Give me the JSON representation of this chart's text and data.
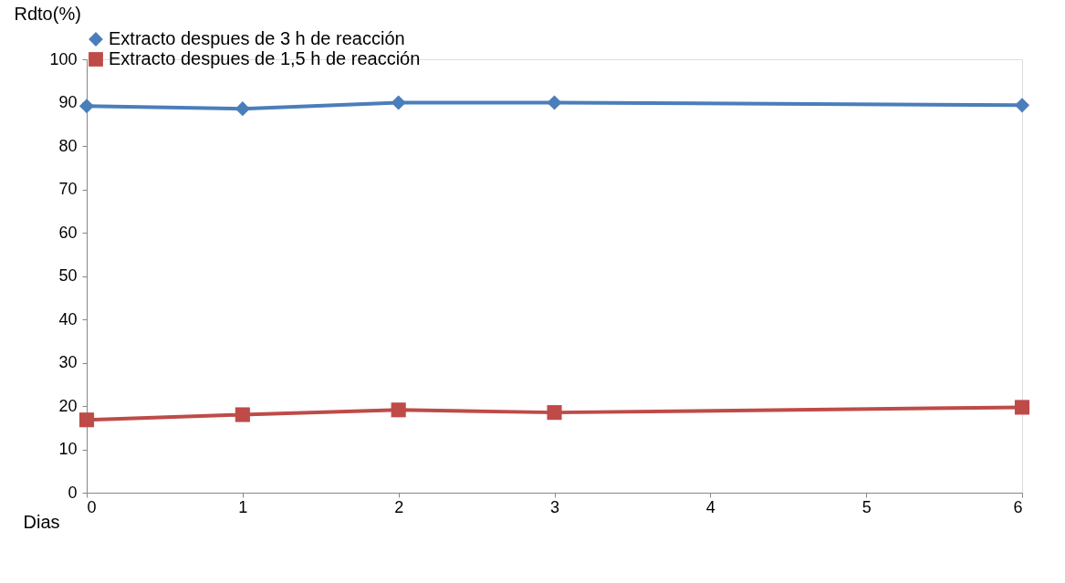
{
  "chart_data": {
    "type": "line",
    "xlabel": "Dias",
    "ylabel": "Rdto(%)",
    "x": [
      0,
      1,
      2,
      3,
      6
    ],
    "series": [
      {
        "name": "Extracto despues de 3  h de reacción",
        "color": "#4a7ebb",
        "marker": "diamond",
        "values": [
          89.2,
          88.6,
          90.0,
          90.0,
          89.4
        ]
      },
      {
        "name": "Extracto despues de 1,5 h de reacción",
        "color": "#be4b48",
        "marker": "square",
        "values": [
          16.8,
          18.0,
          19.1,
          18.5,
          19.7
        ]
      }
    ],
    "xlim": [
      0,
      6
    ],
    "xticks": [
      0,
      1,
      2,
      3,
      4,
      5,
      6
    ],
    "ylim": [
      0,
      100
    ],
    "yticks": [
      0,
      10,
      20,
      30,
      40,
      50,
      60,
      70,
      80,
      90,
      100
    ],
    "grid": false,
    "legend": "top",
    "line_style": "solid"
  }
}
